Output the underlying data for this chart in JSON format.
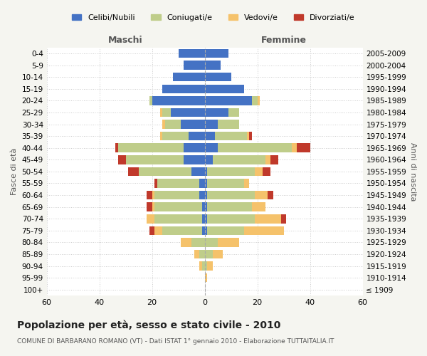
{
  "age_groups": [
    "100+",
    "95-99",
    "90-94",
    "85-89",
    "80-84",
    "75-79",
    "70-74",
    "65-69",
    "60-64",
    "55-59",
    "50-54",
    "45-49",
    "40-44",
    "35-39",
    "30-34",
    "25-29",
    "20-24",
    "15-19",
    "10-14",
    "5-9",
    "0-4"
  ],
  "birth_years": [
    "≤ 1909",
    "1910-1914",
    "1915-1919",
    "1920-1924",
    "1925-1929",
    "1930-1934",
    "1935-1939",
    "1940-1944",
    "1945-1949",
    "1950-1954",
    "1955-1959",
    "1960-1964",
    "1965-1969",
    "1970-1974",
    "1975-1979",
    "1980-1984",
    "1985-1989",
    "1990-1994",
    "1995-1999",
    "2000-2004",
    "2005-2009"
  ],
  "male_celibe": [
    0,
    0,
    0,
    0,
    0,
    1,
    1,
    1,
    2,
    2,
    5,
    8,
    8,
    6,
    9,
    13,
    20,
    16,
    12,
    8,
    10
  ],
  "male_coniugato": [
    0,
    0,
    1,
    2,
    5,
    15,
    18,
    18,
    17,
    16,
    20,
    22,
    25,
    10,
    6,
    3,
    1,
    0,
    0,
    0,
    0
  ],
  "male_vedovo": [
    0,
    0,
    1,
    2,
    4,
    3,
    3,
    1,
    1,
    0,
    0,
    0,
    0,
    1,
    1,
    1,
    0,
    0,
    0,
    0,
    0
  ],
  "male_divorziato": [
    0,
    0,
    0,
    0,
    0,
    2,
    0,
    2,
    2,
    1,
    4,
    3,
    1,
    0,
    0,
    0,
    0,
    0,
    0,
    0,
    0
  ],
  "female_celibe": [
    0,
    0,
    0,
    0,
    0,
    1,
    1,
    1,
    1,
    1,
    1,
    3,
    5,
    4,
    5,
    9,
    18,
    15,
    10,
    6,
    9
  ],
  "female_coniugato": [
    0,
    0,
    1,
    3,
    5,
    14,
    18,
    17,
    18,
    14,
    18,
    20,
    28,
    12,
    8,
    4,
    2,
    0,
    0,
    0,
    0
  ],
  "female_vedovo": [
    0,
    1,
    2,
    4,
    8,
    15,
    10,
    5,
    5,
    2,
    3,
    2,
    2,
    1,
    0,
    0,
    1,
    0,
    0,
    0,
    0
  ],
  "female_divorziato": [
    0,
    0,
    0,
    0,
    0,
    0,
    2,
    0,
    2,
    0,
    3,
    3,
    5,
    1,
    0,
    0,
    0,
    0,
    0,
    0,
    0
  ],
  "colors": {
    "celibe": "#4472C4",
    "coniugato": "#BFCD8A",
    "vedovo": "#F5C26B",
    "divorziato": "#C0392B"
  },
  "xlim": 60,
  "title": "Popolazione per età, sesso e stato civile - 2010",
  "subtitle": "COMUNE DI BARBARANO ROMANO (VT) - Dati ISTAT 1° gennaio 2010 - Elaborazione TUTTAITALIA.IT",
  "ylabel_left": "Fasce di età",
  "ylabel_right": "Anni di nascita",
  "xlabel_left": "Maschi",
  "xlabel_right": "Femmine",
  "bg_color": "#f5f5f0",
  "plot_bg": "#ffffff"
}
